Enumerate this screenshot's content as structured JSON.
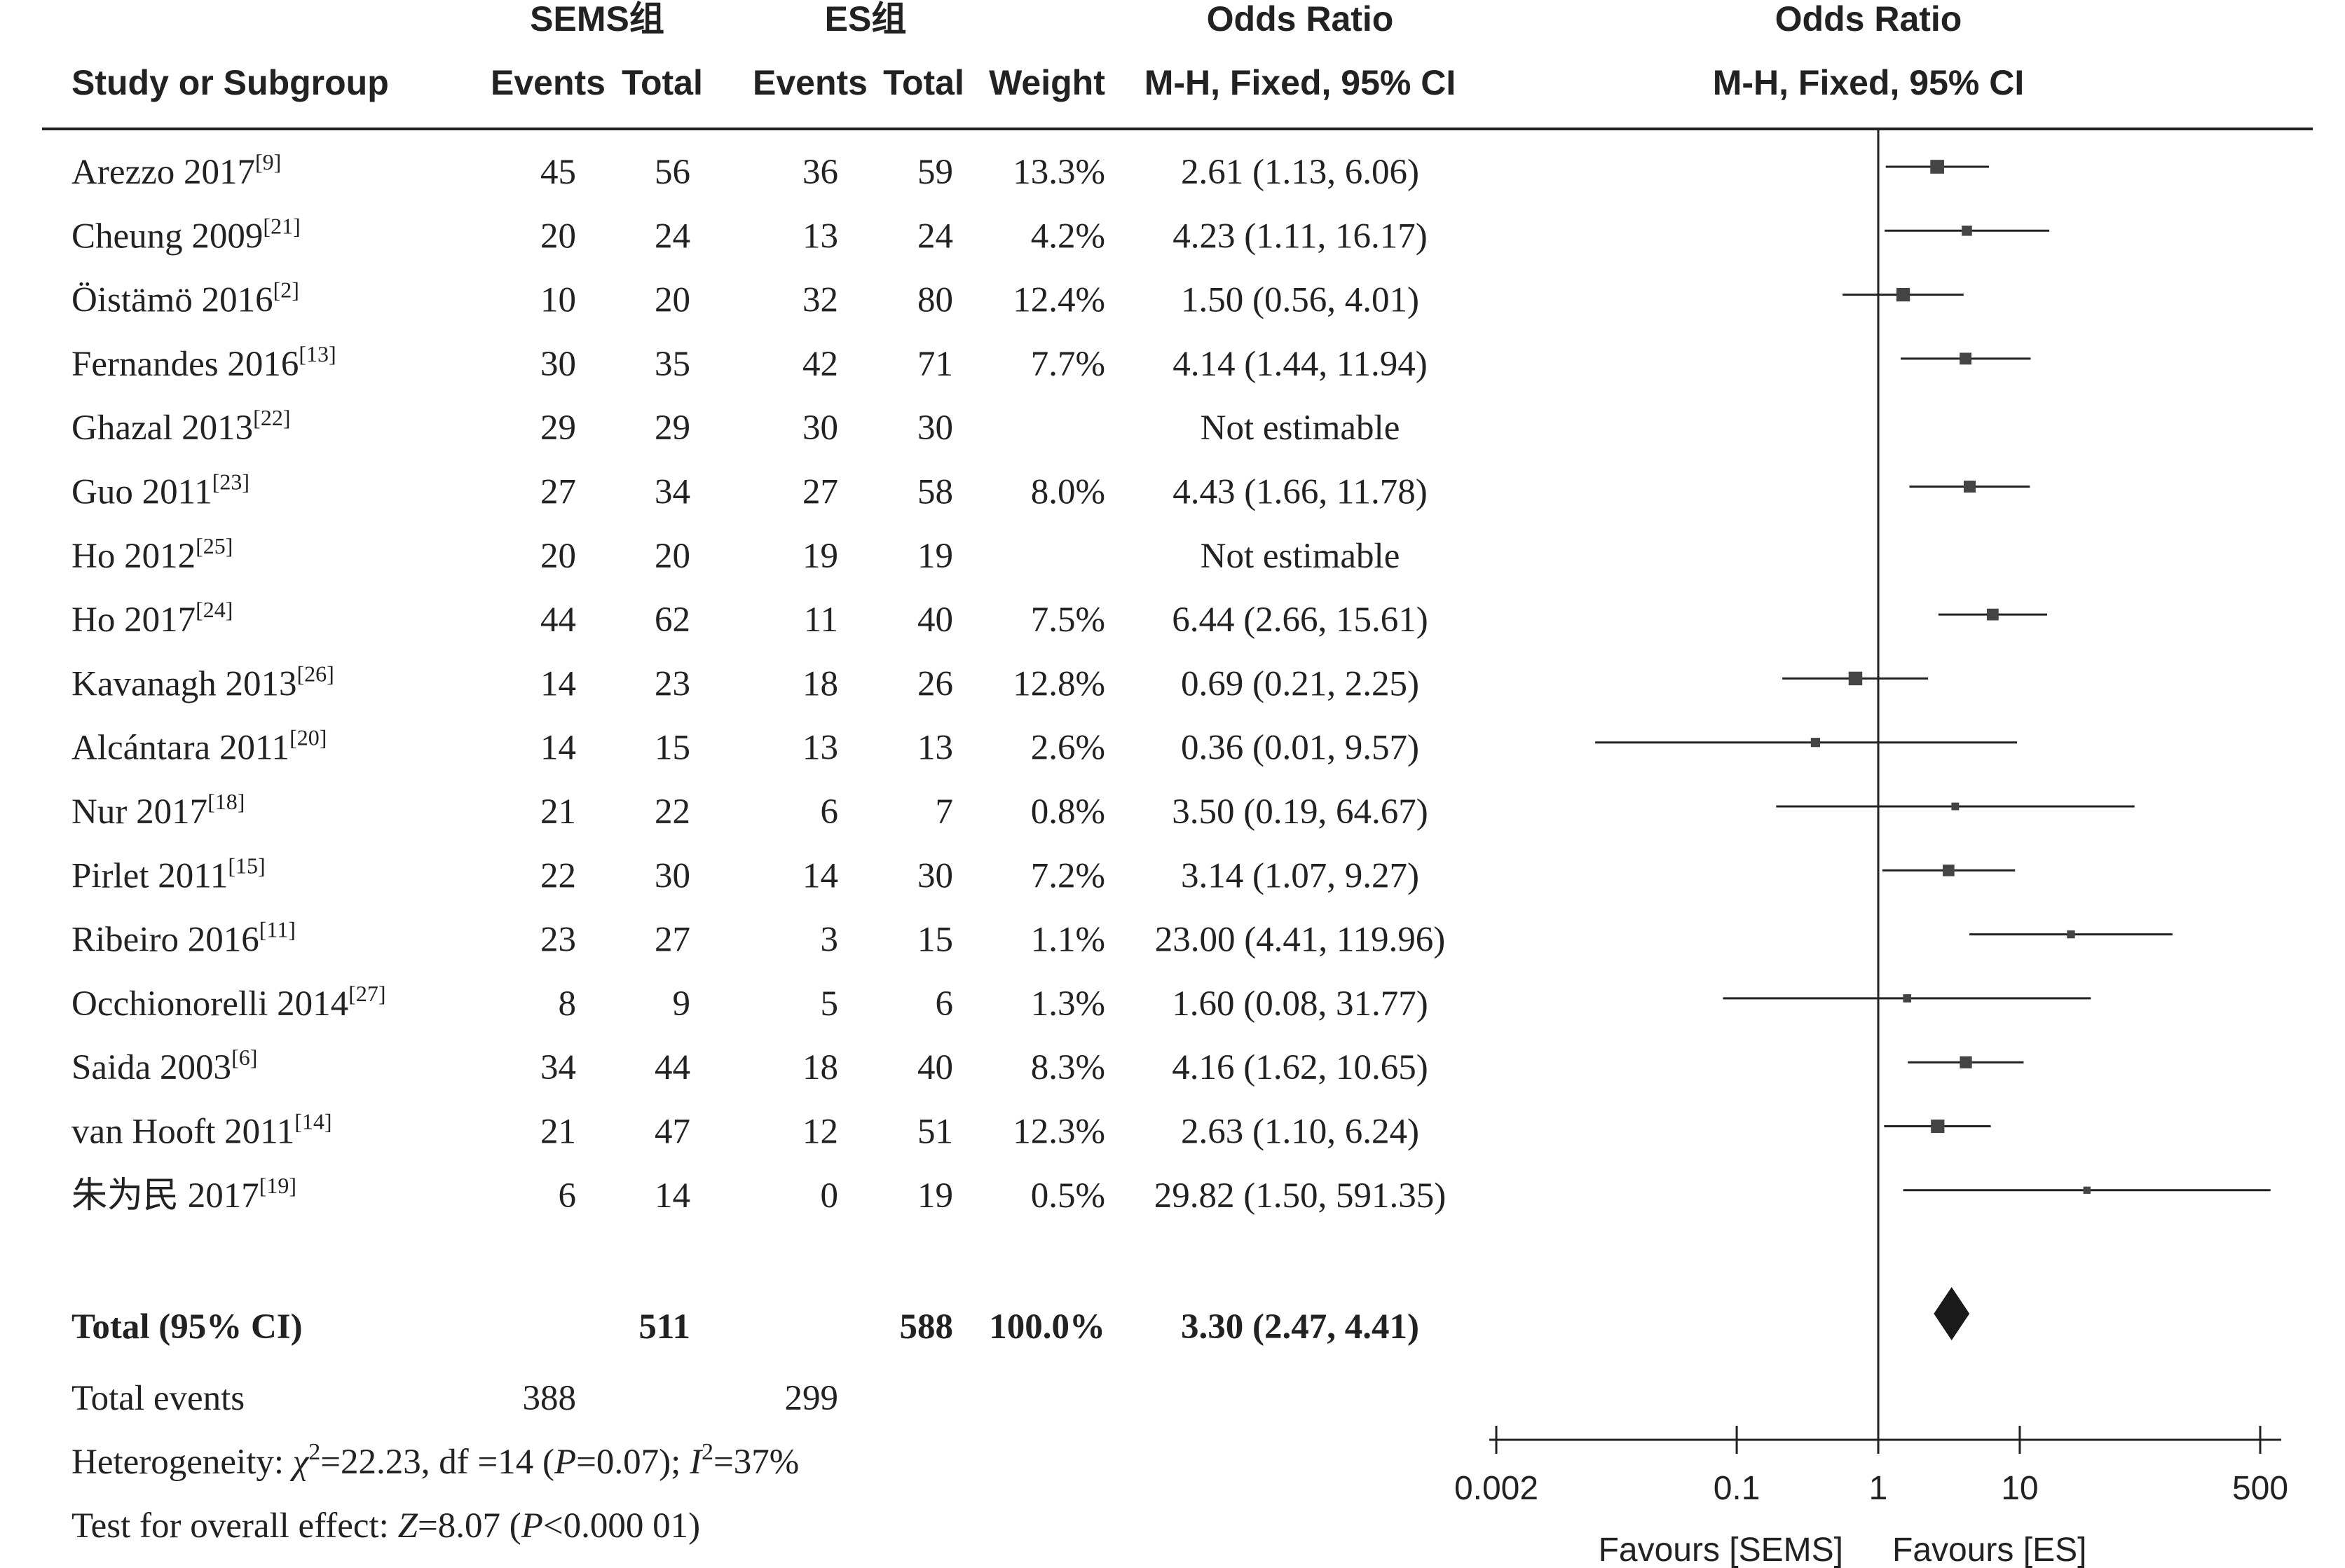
{
  "headers": {
    "group1": "SEMS组",
    "group2": "ES组",
    "or_table_title": "Odds Ratio",
    "or_table_method": "M-H, Fixed, 95% CI",
    "or_plot_title": "Odds Ratio",
    "or_plot_method": "M-H, Fixed, 95% CI",
    "study": "Study or Subgroup",
    "events1": "Events",
    "total1": "Total",
    "events2": "Events",
    "total2": "Total",
    "weight": "Weight"
  },
  "studies": [
    {
      "name": "Arezzo 2017",
      "ref": "[9]",
      "e1": "45",
      "t1": "56",
      "e2": "36",
      "t2": "59",
      "weight": "13.3%",
      "ci_text": "2.61 (1.13, 6.06)"
    },
    {
      "name": "Cheung 2009",
      "ref": "[21]",
      "e1": "20",
      "t1": "24",
      "e2": "13",
      "t2": "24",
      "weight": "4.2%",
      "ci_text": "4.23 (1.11, 16.17)"
    },
    {
      "name": "Öistämö 2016",
      "ref": "[2]",
      "e1": "10",
      "t1": "20",
      "e2": "32",
      "t2": "80",
      "weight": "12.4%",
      "ci_text": "1.50 (0.56, 4.01)"
    },
    {
      "name": "Fernandes 2016",
      "ref": "[13]",
      "e1": "30",
      "t1": "35",
      "e2": "42",
      "t2": "71",
      "weight": "7.7%",
      "ci_text": "4.14 (1.44, 11.94)"
    },
    {
      "name": "Ghazal 2013",
      "ref": "[22]",
      "e1": "29",
      "t1": "29",
      "e2": "30",
      "t2": "30",
      "weight": "",
      "ci_text": "Not estimable"
    },
    {
      "name": "Guo 2011",
      "ref": "[23]",
      "e1": "27",
      "t1": "34",
      "e2": "27",
      "t2": "58",
      "weight": "8.0%",
      "ci_text": "4.43 (1.66, 11.78)"
    },
    {
      "name": "Ho 2012",
      "ref": "[25]",
      "e1": "20",
      "t1": "20",
      "e2": "19",
      "t2": "19",
      "weight": "",
      "ci_text": "Not estimable"
    },
    {
      "name": "Ho 2017",
      "ref": "[24]",
      "e1": "44",
      "t1": "62",
      "e2": "11",
      "t2": "40",
      "weight": "7.5%",
      "ci_text": "6.44 (2.66, 15.61)"
    },
    {
      "name": "Kavanagh 2013",
      "ref": "[26]",
      "e1": "14",
      "t1": "23",
      "e2": "18",
      "t2": "26",
      "weight": "12.8%",
      "ci_text": "0.69 (0.21, 2.25)"
    },
    {
      "name": "Alcántara 2011",
      "ref": "[20]",
      "e1": "14",
      "t1": "15",
      "e2": "13",
      "t2": "13",
      "weight": "2.6%",
      "ci_text": "0.36 (0.01, 9.57)"
    },
    {
      "name": "Nur 2017",
      "ref": "[18]",
      "e1": "21",
      "t1": "22",
      "e2": "6",
      "t2": "7",
      "weight": "0.8%",
      "ci_text": "3.50 (0.19, 64.67)"
    },
    {
      "name": "Pirlet 2011",
      "ref": "[15]",
      "e1": "22",
      "t1": "30",
      "e2": "14",
      "t2": "30",
      "weight": "7.2%",
      "ci_text": "3.14 (1.07, 9.27)"
    },
    {
      "name": "Ribeiro 2016",
      "ref": "[11]",
      "e1": "23",
      "t1": "27",
      "e2": "3",
      "t2": "15",
      "weight": "1.1%",
      "ci_text": "23.00 (4.41, 119.96)"
    },
    {
      "name": "Occhionorelli 2014",
      "ref": "[27]",
      "e1": "8",
      "t1": "9",
      "e2": "5",
      "t2": "6",
      "weight": "1.3%",
      "ci_text": "1.60 (0.08, 31.77)"
    },
    {
      "name": "Saida 2003",
      "ref": "[6]",
      "e1": "34",
      "t1": "44",
      "e2": "18",
      "t2": "40",
      "weight": "8.3%",
      "ci_text": "4.16 (1.62, 10.65)"
    },
    {
      "name": "van Hooft 2011",
      "ref": "[14]",
      "e1": "21",
      "t1": "47",
      "e2": "12",
      "t2": "51",
      "weight": "12.3%",
      "ci_text": "2.63 (1.10, 6.24)"
    },
    {
      "name": "朱为民 2017",
      "ref": "[19]",
      "e1": "6",
      "t1": "14",
      "e2": "0",
      "t2": "19",
      "weight": "0.5%",
      "ci_text": "29.82 (1.50, 591.35)"
    }
  ],
  "total": {
    "label": "Total (95% CI)",
    "t1": "511",
    "t2": "588",
    "weight": "100.0%",
    "ci_text": "3.30 (2.47, 4.41)"
  },
  "total_events": {
    "label": "Total events",
    "e1": "388",
    "e2": "299"
  },
  "heterogeneity": {
    "prefix": "Heterogeneity: ",
    "chi": "χ",
    "chi_rest": "=22.23, df =14 (",
    "p": "P",
    "p_rest": "=0.07); ",
    "i": "I",
    "i_rest": "=37%"
  },
  "overall": {
    "prefix": "Test for overall effect: ",
    "z": "Z",
    "z_rest": "=8.07 (",
    "p": "P",
    "p_rest": "<0.000 01)"
  },
  "axis": {
    "ticks": [
      {
        "value": 0.002,
        "label": "0.002"
      },
      {
        "value": 0.1,
        "label": "0.1"
      },
      {
        "value": 1,
        "label": "1"
      },
      {
        "value": 10,
        "label": "10"
      },
      {
        "value": 500,
        "label": "500"
      }
    ],
    "favours_left": "Favours [SEMS]",
    "favours_right": "Favours [ES]"
  },
  "chart_data": {
    "type": "forest",
    "scale": "log",
    "xlim": [
      0.002,
      500
    ],
    "reference_line": 1,
    "points": [
      {
        "study": "Arezzo 2017",
        "or": 2.61,
        "lo": 1.13,
        "hi": 6.06,
        "weight": 13.3
      },
      {
        "study": "Cheung 2009",
        "or": 4.23,
        "lo": 1.11,
        "hi": 16.17,
        "weight": 4.2
      },
      {
        "study": "Öistämö 2016",
        "or": 1.5,
        "lo": 0.56,
        "hi": 4.01,
        "weight": 12.4
      },
      {
        "study": "Fernandes 2016",
        "or": 4.14,
        "lo": 1.44,
        "hi": 11.94,
        "weight": 7.7
      },
      {
        "study": "Ghazal 2013",
        "or": null,
        "lo": null,
        "hi": null,
        "weight": null
      },
      {
        "study": "Guo 2011",
        "or": 4.43,
        "lo": 1.66,
        "hi": 11.78,
        "weight": 8.0
      },
      {
        "study": "Ho 2012",
        "or": null,
        "lo": null,
        "hi": null,
        "weight": null
      },
      {
        "study": "Ho 2017",
        "or": 6.44,
        "lo": 2.66,
        "hi": 15.61,
        "weight": 7.5
      },
      {
        "study": "Kavanagh 2013",
        "or": 0.69,
        "lo": 0.21,
        "hi": 2.25,
        "weight": 12.8
      },
      {
        "study": "Alcántara 2011",
        "or": 0.36,
        "lo": 0.01,
        "hi": 9.57,
        "weight": 2.6
      },
      {
        "study": "Nur 2017",
        "or": 3.5,
        "lo": 0.19,
        "hi": 64.67,
        "weight": 0.8
      },
      {
        "study": "Pirlet 2011",
        "or": 3.14,
        "lo": 1.07,
        "hi": 9.27,
        "weight": 7.2
      },
      {
        "study": "Ribeiro 2016",
        "or": 23.0,
        "lo": 4.41,
        "hi": 119.96,
        "weight": 1.1
      },
      {
        "study": "Occhionorelli 2014",
        "or": 1.6,
        "lo": 0.08,
        "hi": 31.77,
        "weight": 1.3
      },
      {
        "study": "Saida 2003",
        "or": 4.16,
        "lo": 1.62,
        "hi": 10.65,
        "weight": 8.3
      },
      {
        "study": "van Hooft 2011",
        "or": 2.63,
        "lo": 1.1,
        "hi": 6.24,
        "weight": 12.3
      },
      {
        "study": "朱为民 2017",
        "or": 29.82,
        "lo": 1.5,
        "hi": 591.35,
        "weight": 0.5
      }
    ],
    "pooled": {
      "or": 3.3,
      "lo": 2.47,
      "hi": 4.41,
      "weight": 100.0
    },
    "colors": {
      "marker": "#444444",
      "line": "#222222",
      "diamond": "#1a1a1a"
    }
  }
}
